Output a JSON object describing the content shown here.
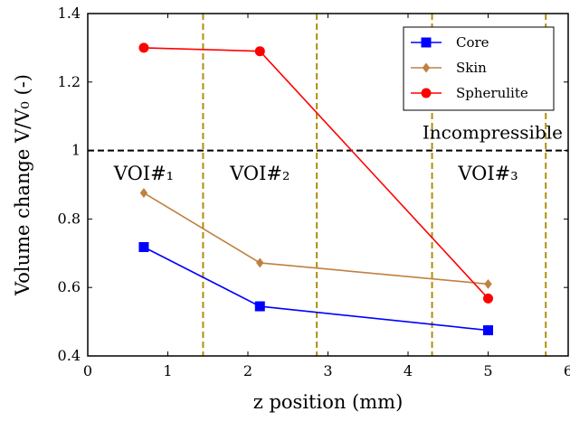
{
  "chart_data": {
    "type": "line",
    "xlabel": "z position (mm)",
    "ylabel": "Volume change V/V₀ (-)",
    "xlim": [
      0,
      6
    ],
    "ylim": [
      0.4,
      1.4
    ],
    "xticks": [
      "0",
      "1",
      "2",
      "3",
      "4",
      "5",
      "6"
    ],
    "yticks": [
      "0.4",
      "0.6",
      "0.8",
      "1",
      "1.2",
      "1.4"
    ],
    "grid": false,
    "legend_position": "top-right",
    "series": [
      {
        "name": "Core",
        "color": "#0000ff",
        "marker": "square",
        "x": [
          0.7,
          2.15,
          5.0
        ],
        "y": [
          0.718,
          0.545,
          0.475
        ]
      },
      {
        "name": "Skin",
        "color": "#bf8040",
        "marker": "diamond",
        "x": [
          0.7,
          2.15,
          5.0
        ],
        "y": [
          0.876,
          0.672,
          0.61
        ]
      },
      {
        "name": "Spherulite",
        "color": "#ff0000",
        "marker": "circle",
        "x": [
          0.7,
          2.15,
          5.0
        ],
        "y": [
          1.3,
          1.29,
          0.568
        ]
      }
    ],
    "reference_line": {
      "y": 1.0,
      "label": "Incompressible",
      "color": "#000000"
    },
    "region_lines": {
      "color": "#b0900a",
      "x": [
        1.44,
        2.86,
        4.3,
        5.72
      ]
    },
    "regions": [
      {
        "label": "VOI#₁",
        "x": 0.7
      },
      {
        "label": "VOI#₂",
        "x": 2.15
      },
      {
        "label": "VOI#₃",
        "x": 5.0
      }
    ]
  }
}
